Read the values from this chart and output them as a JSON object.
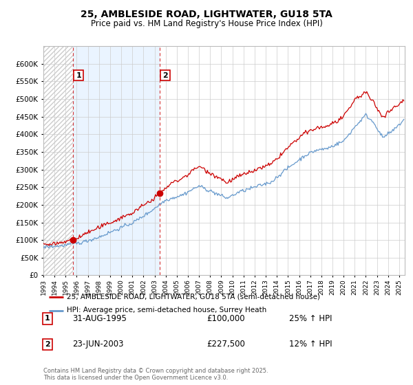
{
  "title_line1": "25, AMBLESIDE ROAD, LIGHTWATER, GU18 5TA",
  "title_line2": "Price paid vs. HM Land Registry's House Price Index (HPI)",
  "ylim": [
    0,
    650000
  ],
  "ytick_step": 50000,
  "sale1_year": 1995.667,
  "sale1_price": 100000,
  "sale1_date": "31-AUG-1995",
  "sale1_pct": "25% ↑ HPI",
  "sale2_year": 2003.458,
  "sale2_price": 227500,
  "sale2_date": "23-JUN-2003",
  "sale2_pct": "12% ↑ HPI",
  "legend_label_red": "25, AMBLESIDE ROAD, LIGHTWATER, GU18 5TA (semi-detached house)",
  "legend_label_blue": "HPI: Average price, semi-detached house, Surrey Heath",
  "footer": "Contains HM Land Registry data © Crown copyright and database right 2025.\nThis data is licensed under the Open Government Licence v3.0.",
  "red_color": "#cc0000",
  "blue_color": "#6699cc",
  "blue_fill_color": "#ddeeff",
  "annotation_box_color": "#cc0000",
  "grid_color": "#cccccc",
  "background_color": "#ffffff",
  "xmin": 1993,
  "xmax": 2025.5
}
